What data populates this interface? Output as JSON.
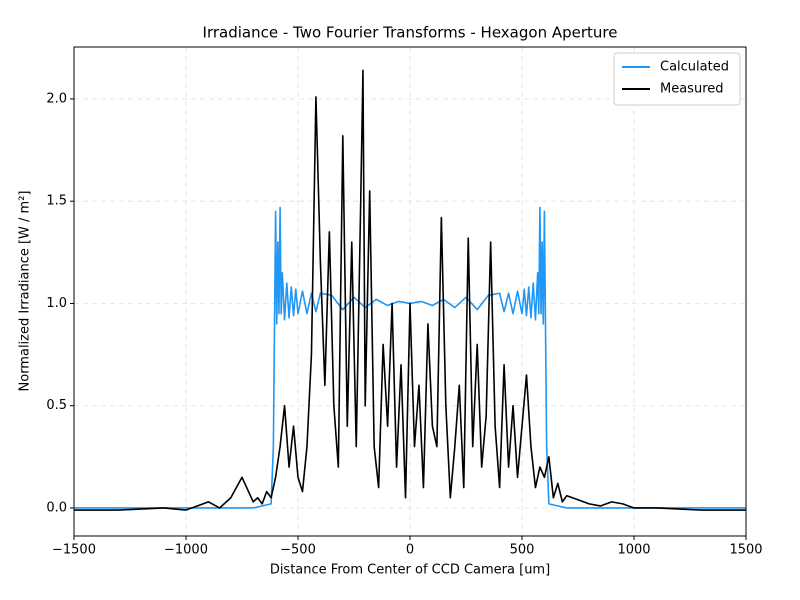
{
  "chart_data": {
    "type": "line",
    "title": "Irradiance - Two Fourier Transforms - Hexagon Aperture",
    "x_label": "Distance From Center of CCD Camera [um]",
    "y_label": "Normalized Irradiance [W / m²]",
    "xlim": [
      -1500,
      1500
    ],
    "ylim": [
      -0.137,
      2.254
    ],
    "xticks": [
      {
        "value": -1500,
        "label": "−1500"
      },
      {
        "value": -1000,
        "label": "−1000"
      },
      {
        "value": -500,
        "label": "−500"
      },
      0,
      500,
      1000,
      1500
    ],
    "yticks": [
      {
        "value": 0,
        "label": "0.0"
      },
      0.5,
      {
        "value": 1,
        "label": "1.0"
      },
      1.5,
      {
        "value": 2,
        "label": "2.0"
      }
    ],
    "grid": true,
    "legend": "upper right",
    "series": [
      {
        "name": "Calculated",
        "color": "#2196f3",
        "x": [
          -1500,
          -700,
          -620,
          -610,
          -600,
          -595,
          -590,
          -585,
          -580,
          -575,
          -570,
          -560,
          -550,
          -540,
          -530,
          -520,
          -510,
          -500,
          -480,
          -460,
          -440,
          -420,
          -400,
          -350,
          -300,
          -250,
          -200,
          -150,
          -100,
          -50,
          0,
          50,
          100,
          150,
          200,
          250,
          300,
          350,
          400,
          420,
          440,
          460,
          480,
          500,
          510,
          520,
          530,
          540,
          550,
          560,
          570,
          575,
          580,
          585,
          590,
          595,
          600,
          610,
          620,
          700,
          1500
        ],
        "values": [
          0,
          0,
          0.02,
          0.3,
          1.45,
          0.9,
          1.3,
          0.95,
          1.47,
          0.95,
          1.15,
          0.92,
          1.1,
          0.93,
          1.08,
          0.94,
          1.07,
          0.95,
          1.06,
          0.95,
          1.05,
          0.96,
          1.05,
          1.04,
          0.97,
          1.03,
          0.98,
          1.02,
          0.99,
          1.01,
          1.0,
          1.01,
          0.99,
          1.02,
          0.98,
          1.03,
          0.97,
          1.04,
          1.05,
          0.96,
          1.05,
          0.95,
          1.06,
          0.95,
          1.07,
          0.94,
          1.08,
          0.93,
          1.1,
          0.92,
          1.15,
          0.95,
          1.47,
          0.95,
          1.3,
          0.9,
          1.45,
          0.3,
          0.02,
          0,
          0
        ]
      },
      {
        "name": "Measured",
        "color": "#000000",
        "x": [
          -1500,
          -1300,
          -1100,
          -1000,
          -950,
          -900,
          -850,
          -800,
          -750,
          -700,
          -680,
          -660,
          -640,
          -620,
          -600,
          -580,
          -560,
          -540,
          -520,
          -500,
          -480,
          -460,
          -440,
          -420,
          -400,
          -380,
          -360,
          -340,
          -320,
          -300,
          -280,
          -260,
          -240,
          -220,
          -210,
          -200,
          -180,
          -160,
          -140,
          -120,
          -100,
          -80,
          -60,
          -40,
          -20,
          0,
          20,
          40,
          60,
          80,
          100,
          120,
          140,
          160,
          180,
          200,
          220,
          240,
          260,
          280,
          300,
          320,
          340,
          360,
          380,
          400,
          420,
          440,
          460,
          480,
          500,
          520,
          540,
          560,
          580,
          600,
          620,
          640,
          660,
          680,
          700,
          750,
          800,
          850,
          900,
          950,
          1000,
          1100,
          1300,
          1500
        ],
        "values": [
          -0.01,
          -0.01,
          0,
          -0.01,
          0.01,
          0.03,
          0,
          0.05,
          0.15,
          0.03,
          0.05,
          0.02,
          0.08,
          0.05,
          0.15,
          0.3,
          0.5,
          0.2,
          0.4,
          0.15,
          0.08,
          0.3,
          0.75,
          2.01,
          1.2,
          0.6,
          1.35,
          0.5,
          0.2,
          1.82,
          0.4,
          1.3,
          0.3,
          1.5,
          2.14,
          0.5,
          1.55,
          0.3,
          0.1,
          0.8,
          0.4,
          1.0,
          0.2,
          0.7,
          0.05,
          1.0,
          0.3,
          0.6,
          0.1,
          0.9,
          0.4,
          0.3,
          1.42,
          0.5,
          0.05,
          0.3,
          0.6,
          0.1,
          1.32,
          0.3,
          0.8,
          0.2,
          0.45,
          1.3,
          0.4,
          0.1,
          0.7,
          0.2,
          0.5,
          0.15,
          0.4,
          0.65,
          0.3,
          0.1,
          0.2,
          0.15,
          0.25,
          0.05,
          0.12,
          0.03,
          0.06,
          0.04,
          0.02,
          0.01,
          0.03,
          0.02,
          0,
          0,
          -0.01,
          -0.01
        ]
      }
    ]
  }
}
